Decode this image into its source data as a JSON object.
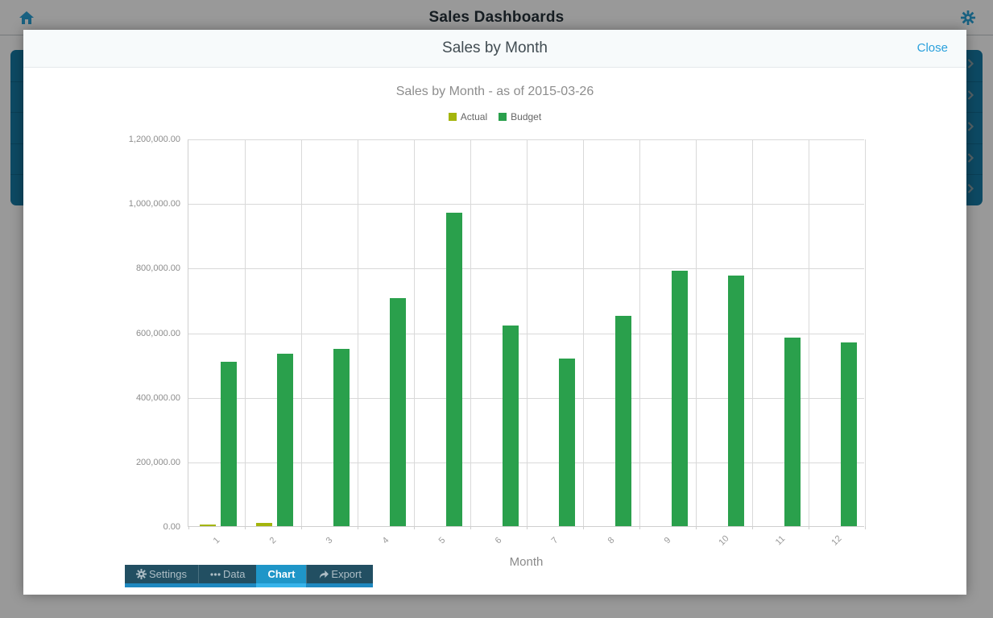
{
  "topbar": {
    "title": "Sales Dashboards"
  },
  "modal": {
    "title": "Sales by Month",
    "close_label": "Close"
  },
  "tabs": {
    "settings": "Settings",
    "data": "Data",
    "chart": "Chart",
    "export": "Export"
  },
  "background": {
    "dashboard_row_count": 5
  },
  "colors": {
    "accent_blue": "#29a0dc",
    "tab_inactive_bg": "#224f62",
    "tab_active_bg": "#1f96c8",
    "row_navy": "#167ba6"
  },
  "chart_data": {
    "type": "bar",
    "title": "Sales by Month - as of 2015-03-26",
    "xlabel": "Month",
    "ylabel": "",
    "categories": [
      "1",
      "2",
      "3",
      "4",
      "5",
      "6",
      "7",
      "8",
      "9",
      "10",
      "11",
      "12"
    ],
    "series": [
      {
        "name": "Actual",
        "color": "#a4b50c",
        "values": [
          6000,
          10000,
          0,
          0,
          0,
          0,
          0,
          0,
          0,
          0,
          0,
          0
        ]
      },
      {
        "name": "Budget",
        "color": "#2aa04c",
        "values": [
          510000,
          535000,
          550000,
          705000,
          970000,
          620000,
          520000,
          650000,
          790000,
          775000,
          585000,
          570000
        ]
      }
    ],
    "ylim": [
      0,
      1200000
    ],
    "yticks": [
      {
        "value": 0,
        "label": "0.00"
      },
      {
        "value": 200000,
        "label": "200,000.00"
      },
      {
        "value": 400000,
        "label": "400,000.00"
      },
      {
        "value": 600000,
        "label": "600,000.00"
      },
      {
        "value": 800000,
        "label": "800,000.00"
      },
      {
        "value": 1000000,
        "label": "1,000,000.00"
      },
      {
        "value": 1200000,
        "label": "1,200,000.00"
      }
    ],
    "grid": true,
    "legend_position": "top"
  }
}
